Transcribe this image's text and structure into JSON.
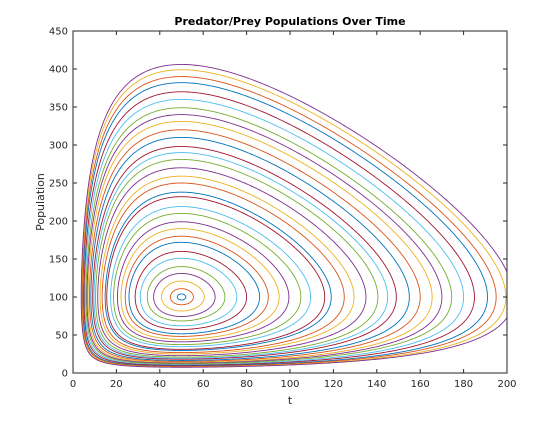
{
  "chart_data": {
    "type": "line",
    "title": "Predator/Prey Populations Over Time",
    "xlabel": "t",
    "ylabel": "Population",
    "xlim": [
      0,
      200
    ],
    "ylim": [
      0,
      450
    ],
    "xticks": [
      0,
      20,
      40,
      60,
      80,
      100,
      120,
      140,
      160,
      180,
      200
    ],
    "yticks": [
      0,
      50,
      100,
      150,
      200,
      250,
      300,
      350,
      400,
      450
    ],
    "grid": false,
    "legend": "none",
    "equilibrium": [
      50,
      100
    ],
    "color_cycle": [
      "#0072BD",
      "#D95319",
      "#EDB120",
      "#7E2F8E",
      "#77AC30",
      "#4DBEEE",
      "#A2142F"
    ],
    "orbit_max_y": [
      104,
      111,
      121,
      131,
      140,
      151,
      160,
      172,
      180,
      190,
      199,
      210,
      219,
      232,
      238,
      250,
      259,
      270,
      281,
      290,
      298,
      310,
      320,
      331,
      340,
      349,
      360,
      370,
      382,
      390,
      399,
      406
    ],
    "series": []
  }
}
